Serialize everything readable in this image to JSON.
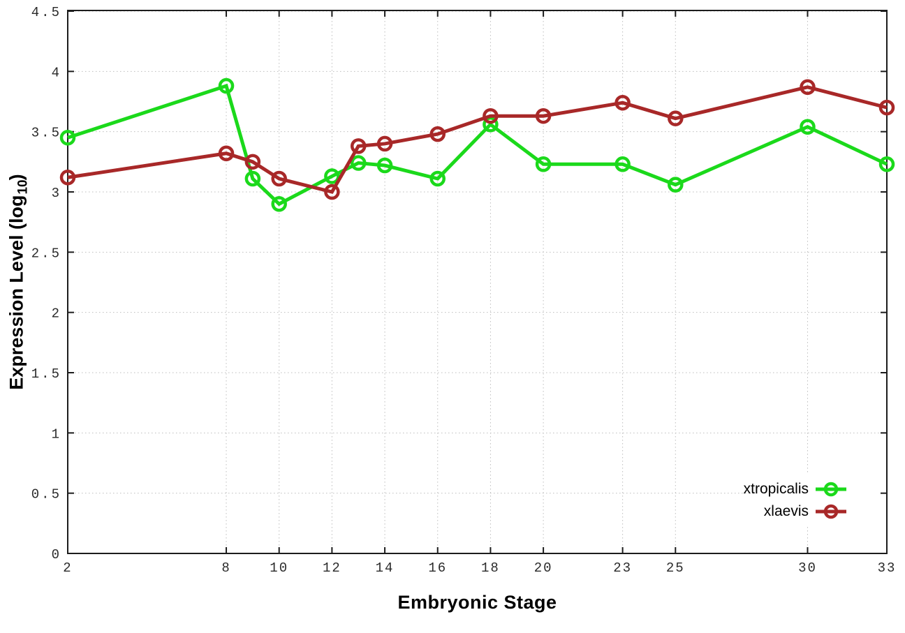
{
  "figure": {
    "background": "#ffffff",
    "border_color": "#1c1c1c",
    "grid_color": "#bdbdbd",
    "tick_label_color": "#2a2a2a",
    "xlabel": "Embryonic Stage",
    "ylabel_prefix": "Expression Level (log",
    "ylabel_sub": "10",
    "ylabel_suffix": ")"
  },
  "chart_data": {
    "type": "line",
    "title": "",
    "xlabel": "Embryonic Stage",
    "ylabel": "Expression Level (log10)",
    "xlim": [
      2,
      33
    ],
    "ylim": [
      0,
      4.5
    ],
    "grid": true,
    "grid_style": "dotted",
    "legend_position": "inside-bottom-right",
    "x_ticks": [
      2,
      8,
      10,
      12,
      14,
      16,
      18,
      20,
      23,
      25,
      30,
      33
    ],
    "y_ticks": [
      0,
      0.5,
      1,
      1.5,
      2,
      2.5,
      3,
      3.5,
      4,
      4.5
    ],
    "x": [
      2,
      8,
      9,
      10,
      12,
      13,
      14,
      16,
      18,
      20,
      23,
      25,
      30,
      33
    ],
    "series": [
      {
        "name": "xtropicalis",
        "color": "#1bd91b",
        "marker": "open-circle",
        "values": [
          3.45,
          3.88,
          3.11,
          2.9,
          3.13,
          3.24,
          3.22,
          3.11,
          3.56,
          3.23,
          3.23,
          3.06,
          3.54,
          3.23
        ]
      },
      {
        "name": "xlaevis",
        "color": "#a82828",
        "marker": "open-circle",
        "values": [
          3.12,
          3.32,
          3.25,
          3.11,
          3.0,
          3.38,
          3.4,
          3.48,
          3.63,
          3.63,
          3.74,
          3.61,
          3.87,
          3.7
        ]
      }
    ]
  }
}
